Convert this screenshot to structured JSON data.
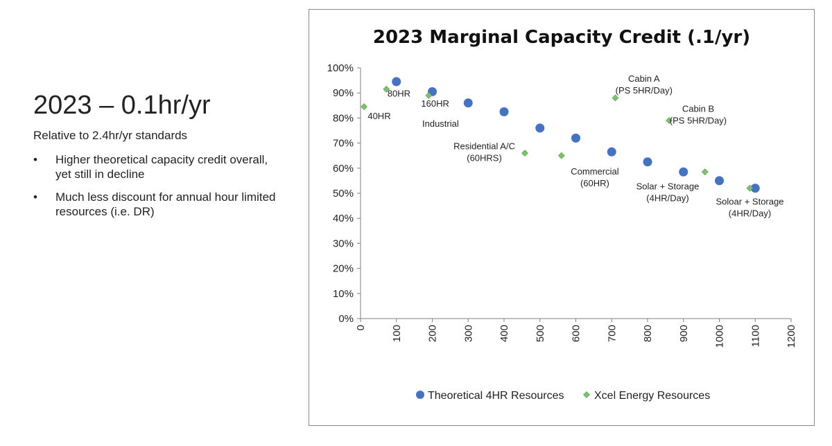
{
  "slide": {
    "title": "2023 – 0.1hr/yr",
    "subtitle": "Relative to 2.4hr/yr standards",
    "bullets": [
      "Higher theoretical capacity credit overall, yet still in decline",
      "Much less discount for annual hour limited resources (i.e. DR)"
    ]
  },
  "chart_data": {
    "type": "scatter",
    "title": "2023 Marginal Capacity Credit (.1/yr)",
    "xlabel": "",
    "ylabel": "",
    "xlim": [
      0,
      1200
    ],
    "ylim": [
      0,
      100
    ],
    "x_ticks": [
      "0",
      "100",
      "200",
      "300",
      "400",
      "500",
      "600",
      "700",
      "800",
      "900",
      "1000",
      "1100",
      "1200"
    ],
    "y_ticks": [
      "0%",
      "10%",
      "20%",
      "30%",
      "40%",
      "50%",
      "60%",
      "70%",
      "80%",
      "90%",
      "100%"
    ],
    "grid": false,
    "legend_position": "bottom",
    "series": [
      {
        "name": "Theoretical 4HR Resources",
        "marker": "circle",
        "color": "#4472c4",
        "points": [
          {
            "x": 100,
            "y": 94.5
          },
          {
            "x": 200,
            "y": 90.5
          },
          {
            "x": 300,
            "y": 86
          },
          {
            "x": 400,
            "y": 82.5
          },
          {
            "x": 500,
            "y": 76
          },
          {
            "x": 600,
            "y": 72
          },
          {
            "x": 700,
            "y": 66.5
          },
          {
            "x": 800,
            "y": 62.5
          },
          {
            "x": 900,
            "y": 58.5
          },
          {
            "x": 1000,
            "y": 55
          },
          {
            "x": 1100,
            "y": 52
          }
        ]
      },
      {
        "name": "Xcel Energy Resources",
        "marker": "diamond",
        "color": "#7ac36a",
        "points": [
          {
            "x": 10,
            "y": 84.5
          },
          {
            "x": 72,
            "y": 91.5
          },
          {
            "x": 190,
            "y": 89
          },
          {
            "x": 458,
            "y": 66
          },
          {
            "x": 560,
            "y": 65
          },
          {
            "x": 710,
            "y": 88
          },
          {
            "x": 860,
            "y": 79
          },
          {
            "x": 960,
            "y": 58.5
          },
          {
            "x": 1085,
            "y": 52
          }
        ]
      }
    ],
    "annotations": [
      {
        "lines": [
          "40HR"
        ],
        "x": 20,
        "y": 79.5,
        "anchor": "start"
      },
      {
        "lines": [
          "80HR"
        ],
        "x": 75,
        "y": 88.5,
        "anchor": "start"
      },
      {
        "lines": [
          "160HR"
        ],
        "x": 208,
        "y": 84.5,
        "anchor": "middle"
      },
      {
        "lines": [
          "Industrial"
        ],
        "x": 172,
        "y": 76.5,
        "anchor": "start"
      },
      {
        "lines": [
          "Residential A/C",
          "(60HRS)"
        ],
        "x": 345,
        "y": 67.5,
        "anchor": "middle"
      },
      {
        "lines": [
          "Commercial",
          "(60HR)"
        ],
        "x": 653,
        "y": 57.5,
        "anchor": "middle"
      },
      {
        "lines": [
          "Cabin A",
          "(PS 5HR/Day)"
        ],
        "x": 790,
        "y": 94.5,
        "anchor": "middle"
      },
      {
        "lines": [
          "Cabin B",
          "(PS 5HR/Day)"
        ],
        "x": 941,
        "y": 82.5,
        "anchor": "middle"
      },
      {
        "lines": [
          "Solar + Storage",
          "(4HR/Day)"
        ],
        "x": 856,
        "y": 51.5,
        "anchor": "middle"
      },
      {
        "lines": [
          "Soloar + Storage",
          "(4HR/Day)"
        ],
        "x": 1085,
        "y": 45.5,
        "anchor": "middle"
      }
    ]
  }
}
